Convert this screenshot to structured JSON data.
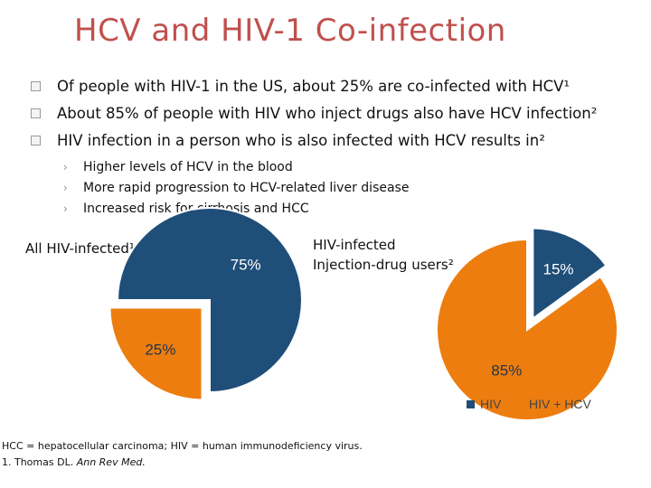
{
  "slide": {
    "title": "HCV and HIV-1 Co-infection",
    "bullets": [
      "Of people with HIV-1 in the US, about 25% are co-infected with HCV¹",
      "About 85% of people with HIV who inject drugs also have HCV infection²",
      "HIV infection in a person who is also infected with HCV results in²"
    ],
    "sub_bullets": [
      "Higher levels of HCV in the blood",
      "More rapid progression to HCV-related liver disease",
      "Increased risk for cirrhosis and HCC"
    ],
    "sub_bullet_icon": "chevron-right-icon",
    "bullet_icon": "square-bullet-icon",
    "chart1_label": "All HIV-infected¹",
    "chart2_label_line1": "HIV-infected",
    "chart2_label_line2": "Injection-drug users²",
    "footnote_line1": "HCC = hepatocellular carcinoma; HIV = human immunodeficiency virus.",
    "footnote_line2_prefix": "1. Thomas DL. ",
    "footnote_line2_journal": "Ann Rev Med."
  },
  "colors": {
    "title": "#c0504d",
    "hiv": "#1f4e79",
    "hiv_hcv": "#ed7d0f"
  },
  "chart_data": [
    {
      "type": "pie",
      "title": "All HIV-infected¹",
      "slices": [
        {
          "label": "HIV",
          "value": 75,
          "display": "75%"
        },
        {
          "label": "HIV + HCV",
          "value": 25,
          "display": "25%",
          "exploded": true
        }
      ]
    },
    {
      "type": "pie",
      "title": "HIV-infected Injection-drug users²",
      "slices": [
        {
          "label": "HIV",
          "value": 15,
          "display": "15%",
          "exploded": true
        },
        {
          "label": "HIV + HCV",
          "value": 85,
          "display": "85%"
        }
      ],
      "legend": {
        "position": "bottom",
        "entries": [
          "HIV",
          "HIV + HCV"
        ]
      }
    }
  ]
}
